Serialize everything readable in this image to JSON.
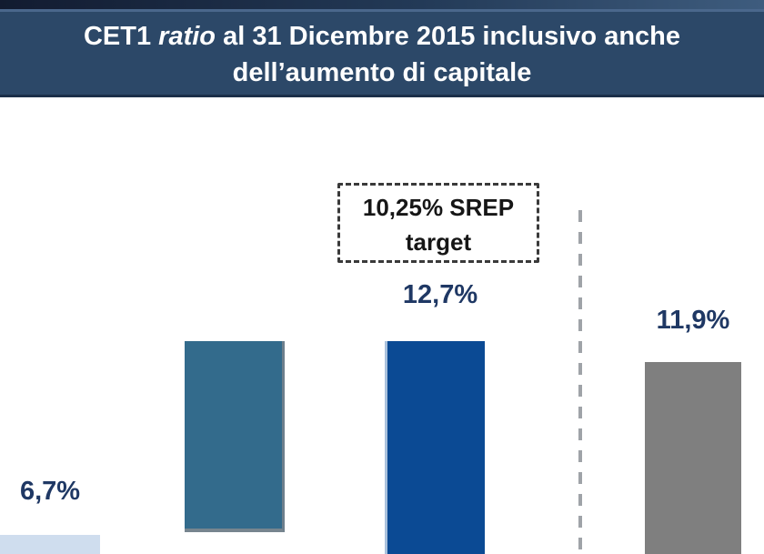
{
  "title": {
    "prefix": "CET1",
    "italic": "ratio",
    "suffix": "al 31 Dicembre 2015 inclusivo anche",
    "line2": "dell’aumento di capitale"
  },
  "annotation_box": {
    "text": "10,25% SREP target"
  },
  "bars": [
    {
      "name": "bar-1",
      "label": "6,7%",
      "color": "#cfddee"
    },
    {
      "name": "bar-2",
      "label": "",
      "color": "#336b8c"
    },
    {
      "name": "bar-3",
      "label": "12,7%",
      "color": "#0b4a94"
    },
    {
      "name": "bar-4",
      "label": "11,9%",
      "color": "#7f7f7f"
    }
  ],
  "colors": {
    "banner_bg": "#2c4868",
    "banner_text": "#ffffff",
    "value_label": "#1f3864",
    "dashed_line": "#9fa3a8",
    "annotation_border": "#3a3a3a"
  },
  "chart_data": {
    "type": "bar",
    "title": "CET1 ratio al 31 Dicembre 2015 inclusivo anche dell’aumento di capitale",
    "categories": [
      "",
      "",
      "",
      ""
    ],
    "values": [
      6.7,
      12.7,
      12.7,
      11.9
    ],
    "value_labels": [
      "6,7%",
      "",
      "12,7%",
      "11,9%"
    ],
    "bar_colors": [
      "#cfddee",
      "#336b8c",
      "#0b4a94",
      "#7f7f7f"
    ],
    "annotations": [
      {
        "text": "10,25% SREP target",
        "style": "dashed-box",
        "position": "above third bar"
      },
      {
        "style": "vertical-dashed-separator",
        "position": "between third and fourth bar"
      }
    ],
    "xlabel": "",
    "ylabel": "",
    "grid": false,
    "legend": false,
    "note": "image is cropped: x-axis, category labels and second-bar value label are not visible"
  }
}
